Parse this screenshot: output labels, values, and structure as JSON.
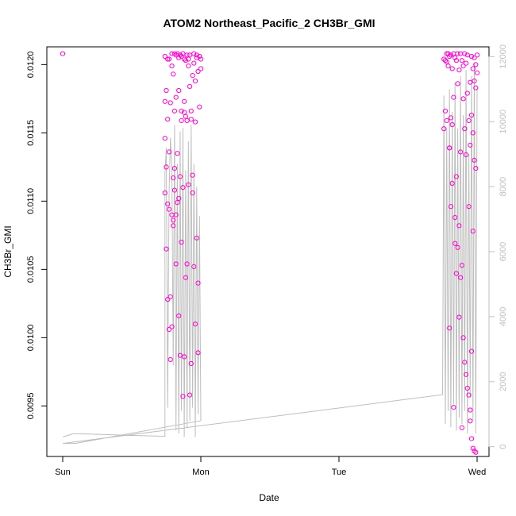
{
  "chart_data": {
    "type": "scatter",
    "title": "ATOM2 Northeast_Pacific_2 CH3Br_GMI",
    "xlabel": "Date",
    "ylabel": "CH3Br_GMI",
    "x_ticks": [
      {
        "label": "Sun",
        "day": 0
      },
      {
        "label": "Mon",
        "day": 1
      },
      {
        "label": "Tue",
        "day": 2
      },
      {
        "label": "Wed",
        "day": 3
      }
    ],
    "y_left": {
      "lim": [
        0.00913,
        0.01213
      ],
      "ticks": [
        "0.0095",
        "0.0100",
        "0.0105",
        "0.0110",
        "0.0115",
        "0.0120"
      ]
    },
    "y_right": {
      "lim": [
        -300,
        12300
      ],
      "ticks": [
        "0",
        "2000",
        "4000",
        "6000",
        "8000",
        "10000",
        "12000"
      ]
    },
    "colors": {
      "points": "#ff00cc",
      "line": "#bebebe",
      "axis": "#000000",
      "right_axis": "#bfbfbf"
    },
    "grid": false,
    "series": [
      {
        "kind": "points",
        "x": [
          0.0,
          0.74,
          0.74,
          0.74,
          0.74,
          0.75,
          0.75,
          0.75,
          0.76,
          0.76,
          0.76,
          0.77,
          0.77,
          0.77,
          0.78,
          0.78,
          0.79,
          0.79,
          0.79,
          0.8,
          0.8,
          0.8,
          0.81,
          0.81,
          0.81,
          0.82,
          0.82,
          0.82,
          0.83,
          0.83,
          0.84,
          0.84,
          0.84,
          0.85,
          0.85,
          0.86,
          0.86,
          0.86,
          0.87,
          0.87,
          0.88,
          0.88,
          0.88,
          0.89,
          0.89,
          0.9,
          0.9,
          0.91,
          0.91,
          0.92,
          0.92,
          0.93,
          0.93,
          0.94,
          0.94,
          0.95,
          0.95,
          0.96,
          0.96,
          0.97,
          0.97,
          0.98,
          0.98,
          0.99,
          0.99,
          1.0,
          1.0,
          0.76,
          0.77,
          0.78,
          0.79,
          0.8,
          0.81,
          0.82,
          0.83,
          0.84,
          0.85,
          0.86,
          0.87,
          0.88,
          0.89,
          0.9,
          0.91,
          0.92,
          0.93,
          0.94,
          0.95,
          0.96,
          0.97,
          0.98,
          2.76,
          2.76,
          2.77,
          2.77,
          2.78,
          2.78,
          2.79,
          2.79,
          2.8,
          2.8,
          2.81,
          2.81,
          2.82,
          2.82,
          2.83,
          2.83,
          2.84,
          2.84,
          2.85,
          2.85,
          2.86,
          2.86,
          2.87,
          2.87,
          2.88,
          2.88,
          2.89,
          2.89,
          2.9,
          2.9,
          2.91,
          2.91,
          2.92,
          2.92,
          2.93,
          2.93,
          2.94,
          2.94,
          2.95,
          2.95,
          2.96,
          2.96,
          2.97,
          2.97,
          2.98,
          2.98,
          2.99,
          2.99,
          3.0,
          3.0,
          2.78,
          2.8,
          2.82,
          2.84,
          2.86,
          2.88,
          2.9,
          2.92,
          2.94,
          2.95,
          2.96,
          2.97,
          2.98,
          2.99,
          2.8,
          2.81,
          2.83,
          2.85,
          2.87,
          2.89,
          2.91,
          2.93,
          2.95,
          2.96,
          2.97,
          2.98,
          2.99
        ],
        "y": [
          0.01208,
          0.01206,
          0.01173,
          0.01146,
          0.01106,
          0.01181,
          0.01125,
          0.01065,
          0.01204,
          0.01098,
          0.0116,
          0.01204,
          0.01136,
          0.01094,
          0.01172,
          0.0103,
          0.0109,
          0.01208,
          0.01199,
          0.01117,
          0.01193,
          0.01082,
          0.01208,
          0.01166,
          0.01124,
          0.01207,
          0.01176,
          0.01054,
          0.01208,
          0.01135,
          0.01205,
          0.01181,
          0.01016,
          0.01207,
          0.00987,
          0.01206,
          0.01159,
          0.01166,
          0.01208,
          0.00957,
          0.01204,
          0.01165,
          0.01173,
          0.01203,
          0.01162,
          0.01207,
          0.01159,
          0.01199,
          0.01204,
          0.01184,
          0.01207,
          0.0116,
          0.01166,
          0.01119,
          0.01192,
          0.01201,
          0.01208,
          0.01158,
          0.01188,
          0.01207,
          0.01205,
          0.0104,
          0.01195,
          0.01206,
          0.01169,
          0.01204,
          0.01197,
          0.01028,
          0.01006,
          0.00984,
          0.01008,
          0.01086,
          0.01108,
          0.0109,
          0.01099,
          0.01102,
          0.01118,
          0.0107,
          0.0111,
          0.00986,
          0.01044,
          0.01054,
          0.01112,
          0.00958,
          0.00981,
          0.01106,
          0.01052,
          0.0101,
          0.01073,
          0.00989,
          0.01153,
          0.01204,
          0.01203,
          0.01166,
          0.01208,
          0.01202,
          0.01199,
          0.01208,
          0.01206,
          0.01139,
          0.01161,
          0.01207,
          0.01197,
          0.01156,
          0.01208,
          0.01176,
          0.01205,
          0.01069,
          0.01203,
          0.01118,
          0.01208,
          0.01186,
          0.01196,
          0.01082,
          0.01208,
          0.01136,
          0.01203,
          0.01053,
          0.01199,
          0.01175,
          0.01208,
          0.01153,
          0.01201,
          0.01134,
          0.01207,
          0.01179,
          0.01096,
          0.01159,
          0.01141,
          0.01187,
          0.01206,
          0.01163,
          0.01197,
          0.0115,
          0.01205,
          0.01188,
          0.01183,
          0.012,
          0.01207,
          0.01194,
          0.01159,
          0.01139,
          0.01113,
          0.01088,
          0.01066,
          0.01044,
          0.01,
          0.00973,
          0.00958,
          0.00939,
          0.00926,
          0.00919,
          0.00917,
          0.00916,
          0.01007,
          0.01096,
          0.00949,
          0.01047,
          0.01015,
          0.00934,
          0.00982,
          0.00963,
          0.00947,
          0.0099,
          0.01078,
          0.0113,
          0.01124
        ]
      },
      {
        "kind": "line",
        "x": [
          0.0,
          0.08,
          0.74,
          0.74,
          0.75,
          0.76,
          0.77,
          0.78,
          0.79,
          0.8,
          0.81,
          0.82,
          0.83,
          0.84,
          0.85,
          0.86,
          0.87,
          0.88,
          0.89,
          0.9,
          0.91,
          0.92,
          0.93,
          0.94,
          0.95,
          0.96,
          0.97,
          0.98,
          0.99,
          1.0,
          0.09,
          0.0,
          2.75,
          2.76,
          2.77,
          2.78,
          2.79,
          2.8,
          2.81,
          2.82,
          2.83,
          2.84,
          2.85,
          2.86,
          2.87,
          2.88,
          2.89,
          2.9,
          2.91,
          2.92,
          2.93,
          2.94,
          2.95,
          2.96,
          2.97,
          2.98,
          2.99,
          3.0
        ],
        "y": [
          300,
          400,
          320,
          8400,
          9200,
          1200,
          7800,
          9500,
          8600,
          2500,
          9900,
          500,
          8700,
          400,
          9700,
          1100,
          9800,
          300,
          8500,
          600,
          9400,
          800,
          9900,
          1200,
          8700,
          300,
          8000,
          1000,
          7100,
          800,
          100,
          100,
          1600,
          10800,
          700,
          9800,
          1100,
          11000,
          600,
          10300,
          1300,
          11200,
          500,
          9800,
          900,
          11400,
          700,
          10200,
          1100,
          11600,
          400,
          9000,
          1500,
          11400,
          800,
          11800,
          400,
          11000
        ]
      }
    ]
  }
}
